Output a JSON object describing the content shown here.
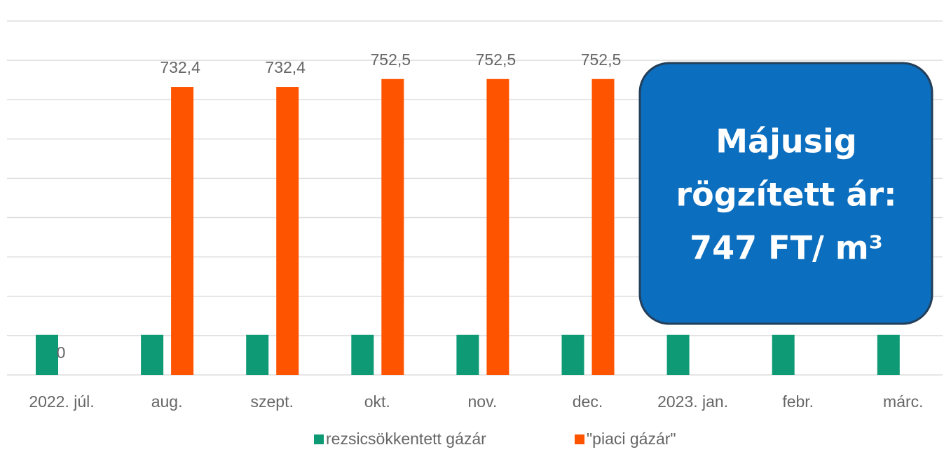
{
  "chart_data": {
    "type": "bar",
    "categories": [
      "2022. júl.",
      "aug.",
      "szept.",
      "okt.",
      "nov.",
      "dec.",
      "2023. jan.",
      "febr.",
      "márc."
    ],
    "series": [
      {
        "name": "rezsicsökkentett gázár",
        "color": "#0e9a74",
        "values": [
          102,
          102,
          102,
          102,
          102,
          102,
          102,
          102,
          102
        ]
      },
      {
        "name": "\"piaci gázár\"",
        "color": "#fe5400",
        "values": [
          0,
          732.4,
          732.4,
          752.5,
          752.5,
          752.5,
          null,
          null,
          null
        ],
        "value_labels": [
          "0",
          "732,4",
          "732,4",
          "752,5",
          "752,5",
          "752,5",
          null,
          null,
          null
        ]
      }
    ],
    "ylim": [
      0,
      900
    ],
    "yticks": [
      0,
      100,
      200,
      300,
      400,
      500,
      600,
      700,
      800,
      900
    ],
    "grid": true,
    "annotation": [
      "Májusig",
      "rögzített ár:",
      "747 FT/ m³"
    ]
  }
}
